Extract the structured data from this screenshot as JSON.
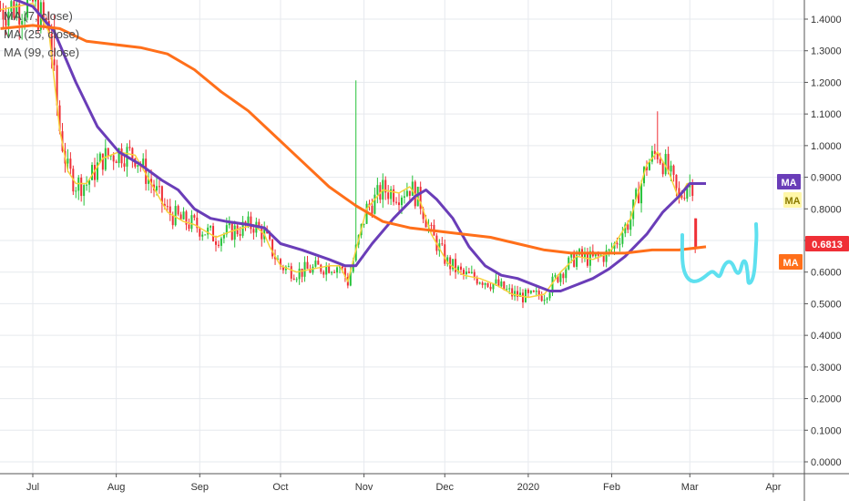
{
  "legend": [
    "MA (7, close)",
    "MA (25, close)",
    "MA (99, close)"
  ],
  "price_tags": [
    {
      "label": "MA",
      "background": "#6a3db8",
      "text_color": "#ffffff"
    },
    {
      "label": "MA",
      "background": "#fff7a8",
      "text_color": "#8a7a00"
    },
    {
      "label": "0.6813",
      "background": "#ef2f36",
      "text_color": "#ffffff"
    },
    {
      "label": "MA",
      "background": "#ff6f1a",
      "text_color": "#ffffff"
    }
  ],
  "colors": {
    "up_candle": "#26c23a",
    "down_candle": "#ef2f36",
    "ma7": "#f7d23a",
    "ma25": "#6a3db8",
    "ma99": "#ff6f1a",
    "projection": "#5ee0ef",
    "grid": "#e6e9ee"
  },
  "chart_data": {
    "type": "candlestick",
    "grid": true,
    "ylim": [
      0.0,
      1.45
    ],
    "y_ticks": [
      "1.4000",
      "1.3000",
      "1.2000",
      "1.1000",
      "1.0000",
      "0.9000",
      "0.8000",
      "0.7000",
      "0.6000",
      "0.5000",
      "0.4000",
      "0.3000",
      "0.2000",
      "0.1000",
      "0.0000"
    ],
    "x_ticks": [
      "Jul",
      "Aug",
      "Sep",
      "Oct",
      "Nov",
      "Dec",
      "2020",
      "Feb",
      "Mar",
      "Apr"
    ],
    "x_tick_days": [
      0,
      31,
      62,
      92,
      123,
      153,
      184,
      215,
      244,
      275
    ],
    "x_range_days": [
      -12,
      285
    ],
    "last_price": 0.6813,
    "ma_series": [
      {
        "name": "MA (7, close)",
        "key": "ma7",
        "points": [
          [
            -12,
            1.43
          ],
          [
            0,
            1.45
          ],
          [
            6,
            1.36
          ],
          [
            10,
            1.05
          ],
          [
            13,
            0.92
          ],
          [
            16,
            0.88
          ],
          [
            20,
            0.88
          ],
          [
            26,
            0.96
          ],
          [
            32,
            0.98
          ],
          [
            38,
            0.97
          ],
          [
            44,
            0.88
          ],
          [
            50,
            0.79
          ],
          [
            56,
            0.76
          ],
          [
            60,
            0.75
          ],
          [
            68,
            0.71
          ],
          [
            74,
            0.73
          ],
          [
            82,
            0.75
          ],
          [
            86,
            0.72
          ],
          [
            88,
            0.68
          ],
          [
            92,
            0.62
          ],
          [
            98,
            0.6
          ],
          [
            104,
            0.61
          ],
          [
            110,
            0.62
          ],
          [
            114,
            0.62
          ],
          [
            117,
            0.57
          ],
          [
            120,
            0.67
          ],
          [
            124,
            0.8
          ],
          [
            130,
            0.86
          ],
          [
            136,
            0.85
          ],
          [
            140,
            0.87
          ],
          [
            144,
            0.82
          ],
          [
            148,
            0.72
          ],
          [
            154,
            0.63
          ],
          [
            160,
            0.59
          ],
          [
            166,
            0.58
          ],
          [
            172,
            0.56
          ],
          [
            178,
            0.53
          ],
          [
            184,
            0.52
          ],
          [
            190,
            0.53
          ],
          [
            196,
            0.6
          ],
          [
            202,
            0.65
          ],
          [
            208,
            0.64
          ],
          [
            214,
            0.66
          ],
          [
            222,
            0.77
          ],
          [
            228,
            0.94
          ],
          [
            232,
            0.98
          ],
          [
            236,
            0.92
          ],
          [
            240,
            0.83
          ],
          [
            243,
            0.88
          ],
          [
            245,
            0.88
          ]
        ]
      },
      {
        "name": "MA (25, close)",
        "key": "ma25",
        "points": [
          [
            -12,
            1.48
          ],
          [
            0,
            1.44
          ],
          [
            8,
            1.36
          ],
          [
            16,
            1.2
          ],
          [
            24,
            1.06
          ],
          [
            32,
            0.98
          ],
          [
            40,
            0.94
          ],
          [
            48,
            0.89
          ],
          [
            54,
            0.86
          ],
          [
            60,
            0.8
          ],
          [
            66,
            0.77
          ],
          [
            72,
            0.76
          ],
          [
            80,
            0.75
          ],
          [
            86,
            0.74
          ],
          [
            92,
            0.69
          ],
          [
            100,
            0.67
          ],
          [
            110,
            0.64
          ],
          [
            116,
            0.62
          ],
          [
            120,
            0.62
          ],
          [
            126,
            0.69
          ],
          [
            134,
            0.77
          ],
          [
            142,
            0.84
          ],
          [
            146,
            0.86
          ],
          [
            150,
            0.83
          ],
          [
            156,
            0.77
          ],
          [
            162,
            0.68
          ],
          [
            168,
            0.62
          ],
          [
            174,
            0.59
          ],
          [
            180,
            0.58
          ],
          [
            186,
            0.56
          ],
          [
            192,
            0.54
          ],
          [
            196,
            0.54
          ],
          [
            202,
            0.56
          ],
          [
            208,
            0.58
          ],
          [
            214,
            0.61
          ],
          [
            220,
            0.65
          ],
          [
            228,
            0.72
          ],
          [
            234,
            0.79
          ],
          [
            240,
            0.84
          ],
          [
            244,
            0.88
          ],
          [
            250,
            0.88
          ]
        ]
      },
      {
        "name": "MA (99, close)",
        "key": "ma99",
        "points": [
          [
            -12,
            1.37
          ],
          [
            0,
            1.38
          ],
          [
            10,
            1.37
          ],
          [
            20,
            1.33
          ],
          [
            30,
            1.32
          ],
          [
            40,
            1.31
          ],
          [
            50,
            1.29
          ],
          [
            60,
            1.24
          ],
          [
            70,
            1.17
          ],
          [
            80,
            1.11
          ],
          [
            90,
            1.03
          ],
          [
            100,
            0.95
          ],
          [
            110,
            0.87
          ],
          [
            120,
            0.81
          ],
          [
            130,
            0.76
          ],
          [
            140,
            0.74
          ],
          [
            150,
            0.73
          ],
          [
            160,
            0.72
          ],
          [
            170,
            0.71
          ],
          [
            180,
            0.69
          ],
          [
            190,
            0.67
          ],
          [
            200,
            0.66
          ],
          [
            210,
            0.66
          ],
          [
            220,
            0.66
          ],
          [
            230,
            0.67
          ],
          [
            240,
            0.67
          ],
          [
            250,
            0.68
          ]
        ]
      }
    ]
  }
}
